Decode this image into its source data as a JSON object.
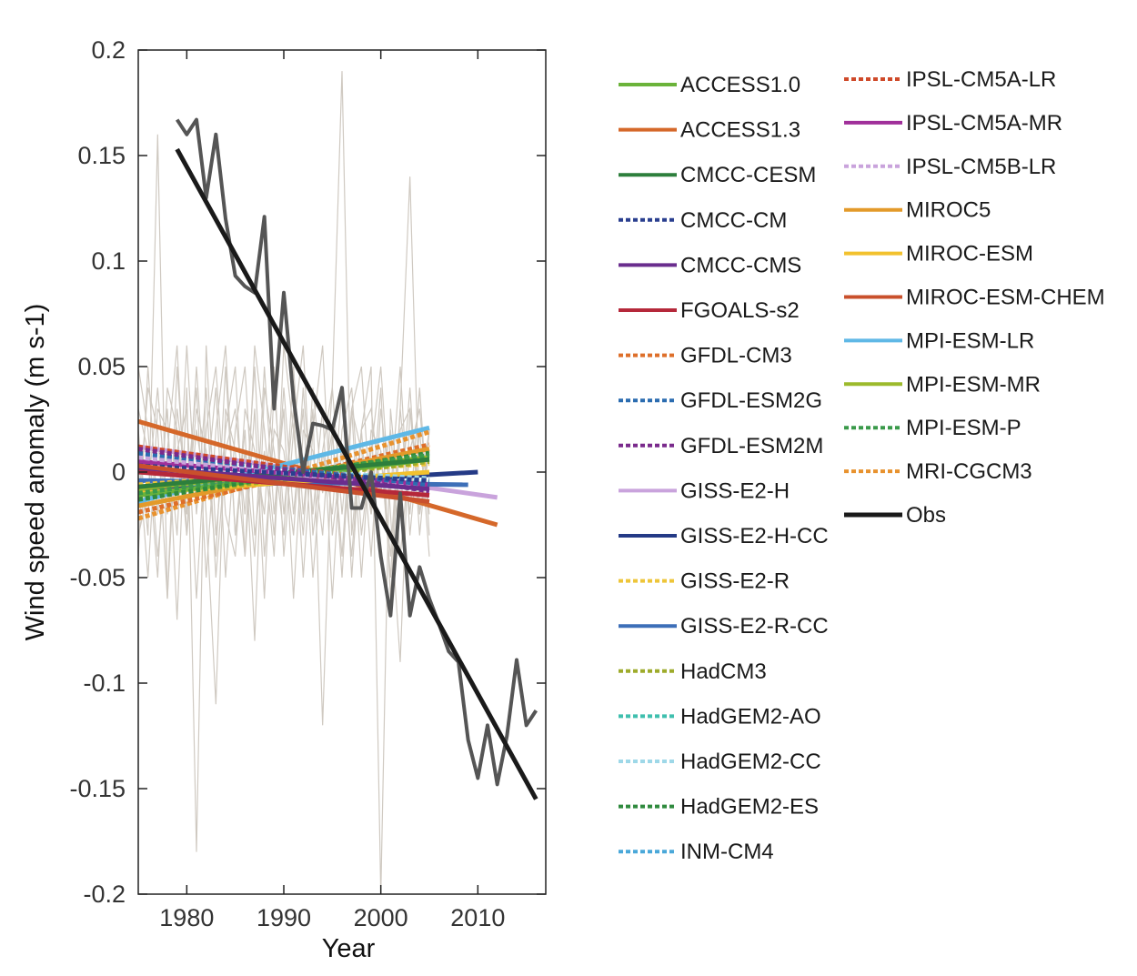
{
  "chart_data": {
    "type": "line",
    "xlabel": "Year",
    "ylabel": "Wind speed anomaly (m s-1)",
    "xlim": [
      1975,
      2017
    ],
    "ylim": [
      -0.2,
      0.2
    ],
    "xticks": [
      1980,
      1990,
      2000,
      2010
    ],
    "xtick_labels": [
      "1980",
      "1990",
      "2000",
      "2010"
    ],
    "yticks": [
      0.2,
      0.15,
      0.1,
      0.05,
      0,
      -0.05,
      -0.1,
      -0.15,
      -0.2
    ],
    "ytick_labels": [
      "0.2",
      "0.15",
      "0.1",
      "0.05",
      "0",
      "-0.05",
      "-0.1",
      "-0.15",
      "-0.2"
    ],
    "grid": false,
    "legend_position": "right",
    "background_series": {
      "description_color": "#cfc9c1",
      "x": [
        1975,
        1976,
        1977,
        1978,
        1979,
        1980,
        1981,
        1982,
        1983,
        1984,
        1985,
        1986,
        1987,
        1988,
        1989,
        1990,
        1991,
        1992,
        1993,
        1994,
        1995,
        1996,
        1997,
        1998,
        1999,
        2000,
        2001,
        2002,
        2003,
        2004,
        2005
      ],
      "runs": [
        [
          0.02,
          -0.03,
          0.16,
          -0.06,
          0.03,
          -0.01,
          0.04,
          -0.05,
          0.02,
          0.06,
          -0.03,
          0.01,
          -0.04,
          0.05,
          -0.02,
          0.03,
          -0.06,
          0.02,
          0.01,
          -0.03,
          0.04,
          -0.02,
          0.03,
          -0.05,
          0.02,
          0.01,
          -0.04,
          0.03,
          0.14,
          -0.02,
          0.01
        ],
        [
          -0.04,
          0.05,
          -0.02,
          0.03,
          -0.07,
          0.04,
          -0.18,
          0.06,
          -0.03,
          0.02,
          0.05,
          -0.04,
          0.03,
          -0.06,
          0.04,
          -0.02,
          0.03,
          -0.05,
          0.02,
          0.06,
          -0.03,
          0.01,
          -0.04,
          0.02,
          0.05,
          -0.2,
          0.03,
          -0.02,
          0.04,
          -0.03,
          0.02
        ],
        [
          0.03,
          0.01,
          -0.05,
          0.04,
          0.02,
          -0.03,
          0.05,
          -0.02,
          -0.11,
          0.03,
          0.01,
          -0.04,
          0.06,
          0.02,
          -0.03,
          0.04,
          -0.02,
          0.03,
          -0.05,
          0.01,
          0.04,
          0.19,
          -0.03,
          0.02,
          -0.04,
          0.03,
          -0.01,
          0.05,
          -0.03,
          0.02,
          -0.04
        ],
        [
          -0.02,
          0.04,
          0.02,
          -0.06,
          0.05,
          -0.02,
          0.03,
          0.01,
          -0.04,
          0.05,
          -0.03,
          0.02,
          -0.08,
          0.04,
          0.01,
          -0.03,
          0.05,
          -0.02,
          0.03,
          -0.12,
          0.02,
          -0.04,
          0.03,
          0.05,
          -0.02,
          0.01,
          -0.05,
          0.03,
          -0.02,
          0.04,
          -0.03
        ],
        [
          0.01,
          -0.05,
          0.03,
          0.02,
          -0.03,
          0.06,
          -0.02,
          0.04,
          -0.05,
          0.01,
          0.03,
          -0.02,
          0.05,
          -0.04,
          0.02,
          0.01,
          -0.03,
          0.04,
          -0.02,
          0.03,
          -0.06,
          0.02,
          0.04,
          -0.03,
          0.01,
          0.05,
          -0.02,
          -0.09,
          0.03,
          -0.01,
          0.02
        ],
        [
          0.05,
          0.02,
          -0.04,
          0.01,
          0.06,
          -0.03,
          0.02,
          -0.01,
          0.04,
          -0.05,
          0.02,
          0.05,
          -0.03,
          0.01,
          -0.04,
          0.06,
          0.02,
          -0.03,
          0.04,
          -0.01,
          0.02,
          -0.05,
          0.03,
          0.01,
          -0.02,
          0.04,
          -0.06,
          0.02,
          0.03,
          -0.02,
          0.01
        ],
        [
          -0.03,
          -0.01,
          0.04,
          -0.02,
          0.01,
          0.03,
          -0.06,
          0.02,
          0.05,
          -0.02,
          -0.04,
          0.03,
          0.01,
          -0.02,
          0.05,
          -0.04,
          0.02,
          0.06,
          -0.03,
          0.01,
          -0.02,
          0.04,
          -0.05,
          0.02,
          0.03,
          -0.01,
          0.02,
          -0.04,
          0.01,
          0.03,
          -0.02
        ]
      ]
    },
    "trend_lines": [
      {
        "name": "ACCESS1.3",
        "color": "#d5682a",
        "dash": false,
        "x": [
          1975,
          2012
        ],
        "y": [
          0.024,
          -0.025
        ]
      },
      {
        "name": "GISS-E2-H",
        "color": "#c9a3dc",
        "dash": false,
        "x": [
          1975,
          2012
        ],
        "y": [
          0.012,
          -0.012
        ]
      },
      {
        "name": "MPI-ESM-LR",
        "color": "#5fb8e6",
        "dash": false,
        "x": [
          1975,
          2005
        ],
        "y": [
          -0.014,
          0.021
        ]
      },
      {
        "name": "GISS-E2-H-CC",
        "color": "#243a86",
        "dash": false,
        "x": [
          1975,
          2010
        ],
        "y": [
          -0.009,
          0.0
        ]
      },
      {
        "name": "GISS-E2-R-CC",
        "color": "#3d6fb8",
        "dash": false,
        "x": [
          1975,
          2009
        ],
        "y": [
          -0.004,
          -0.006
        ]
      },
      {
        "name": "MRI-CGCM3",
        "color": "#e8922e",
        "dash": true,
        "x": [
          1975,
          2005
        ],
        "y": [
          -0.022,
          0.019
        ]
      },
      {
        "name": "GFDL-CM3",
        "color": "#de6f2a",
        "dash": true,
        "x": [
          1975,
          2005
        ],
        "y": [
          -0.019,
          0.013
        ]
      },
      {
        "name": "MIROC5",
        "color": "#e39a2a",
        "dash": false,
        "x": [
          1975,
          2005
        ],
        "y": [
          -0.016,
          0.011
        ]
      },
      {
        "name": "MIROC-ESM",
        "color": "#f2c12e",
        "dash": false,
        "x": [
          1975,
          2005
        ],
        "y": [
          -0.01,
          0.0
        ]
      },
      {
        "name": "GISS-E2-R",
        "color": "#eec539",
        "dash": true,
        "x": [
          1975,
          2005
        ],
        "y": [
          -0.006,
          0.004
        ]
      },
      {
        "name": "HadCM3",
        "color": "#9eab2b",
        "dash": true,
        "x": [
          1975,
          2005
        ],
        "y": [
          -0.012,
          0.005
        ]
      },
      {
        "name": "MPI-ESM-MR",
        "color": "#9cba2c",
        "dash": false,
        "x": [
          1975,
          2005
        ],
        "y": [
          -0.008,
          0.007
        ]
      },
      {
        "name": "ACCESS1.0",
        "color": "#6bb33a",
        "dash": false,
        "x": [
          1975,
          2005
        ],
        "y": [
          -0.011,
          0.006
        ]
      },
      {
        "name": "HadGEM2-ES",
        "color": "#2f8a3e",
        "dash": true,
        "x": [
          1975,
          2005
        ],
        "y": [
          -0.013,
          0.009
        ]
      },
      {
        "name": "MPI-ESM-P",
        "color": "#3a9a4a",
        "dash": true,
        "x": [
          1975,
          2005
        ],
        "y": [
          -0.01,
          0.008
        ]
      },
      {
        "name": "CMCC-CESM",
        "color": "#2d7f3c",
        "dash": false,
        "x": [
          1975,
          2005
        ],
        "y": [
          -0.007,
          0.006
        ]
      },
      {
        "name": "HadGEM2-AO",
        "color": "#3fbfae",
        "dash": true,
        "x": [
          1975,
          2005
        ],
        "y": [
          0.006,
          -0.004
        ]
      },
      {
        "name": "HadGEM2-CC",
        "color": "#9ed8e8",
        "dash": true,
        "x": [
          1975,
          2005
        ],
        "y": [
          0.004,
          -0.003
        ]
      },
      {
        "name": "INM-CM4",
        "color": "#4aa8d9",
        "dash": true,
        "x": [
          1975,
          2005
        ],
        "y": [
          0.008,
          -0.005
        ]
      },
      {
        "name": "IPSL-CM5A-LR",
        "color": "#cf4a2a",
        "dash": true,
        "x": [
          1975,
          2005
        ],
        "y": [
          0.012,
          -0.007
        ]
      },
      {
        "name": "IPSL-CM5A-MR",
        "color": "#a02f9a",
        "dash": false,
        "x": [
          1975,
          2005
        ],
        "y": [
          0.005,
          -0.006
        ]
      },
      {
        "name": "IPSL-CM5B-LR",
        "color": "#c9a3dc",
        "dash": true,
        "x": [
          1975,
          2005
        ],
        "y": [
          0.007,
          -0.008
        ]
      },
      {
        "name": "GFDL-ESM2G",
        "color": "#2b6cb0",
        "dash": true,
        "x": [
          1975,
          2005
        ],
        "y": [
          0.009,
          -0.006
        ]
      },
      {
        "name": "GFDL-ESM2M",
        "color": "#7a2a8c",
        "dash": true,
        "x": [
          1975,
          2005
        ],
        "y": [
          0.011,
          -0.009
        ]
      },
      {
        "name": "CMCC-CM",
        "color": "#2a3f8f",
        "dash": true,
        "x": [
          1975,
          2005
        ],
        "y": [
          0.003,
          -0.004
        ]
      },
      {
        "name": "CMCC-CMS",
        "color": "#6a2d8e",
        "dash": false,
        "x": [
          1975,
          2005
        ],
        "y": [
          0.002,
          -0.008
        ]
      },
      {
        "name": "FGOALS-s2",
        "color": "#b5283a",
        "dash": false,
        "x": [
          1975,
          2005
        ],
        "y": [
          0.0,
          -0.011
        ]
      },
      {
        "name": "MIROC-ESM-CHEM",
        "color": "#c9502c",
        "dash": false,
        "x": [
          1975,
          2005
        ],
        "y": [
          0.003,
          -0.014
        ]
      }
    ],
    "obs_annual": {
      "name": "Obs annual",
      "color": "#555555",
      "x": [
        1979,
        1980,
        1981,
        1982,
        1983,
        1984,
        1985,
        1986,
        1987,
        1988,
        1989,
        1990,
        1991,
        1992,
        1993,
        1994,
        1995,
        1996,
        1997,
        1998,
        1999,
        2000,
        2001,
        2002,
        2003,
        2004,
        2005,
        2006,
        2007,
        2008,
        2009,
        2010,
        2011,
        2012,
        2013,
        2014,
        2015,
        2016
      ],
      "y": [
        0.167,
        0.16,
        0.167,
        0.13,
        0.16,
        0.12,
        0.093,
        0.088,
        0.085,
        0.121,
        0.03,
        0.085,
        0.035,
        0.0,
        0.023,
        0.022,
        0.02,
        0.04,
        -0.017,
        -0.017,
        0.0,
        -0.04,
        -0.068,
        -0.01,
        -0.068,
        -0.045,
        -0.06,
        -0.072,
        -0.085,
        -0.09,
        -0.127,
        -0.145,
        -0.12,
        -0.148,
        -0.125,
        -0.089,
        -0.12,
        -0.113
      ]
    },
    "obs_trend": {
      "name": "Obs",
      "color": "#1a1a1a",
      "x": [
        1979,
        2016
      ],
      "y": [
        0.153,
        -0.155
      ]
    },
    "legend": {
      "col1": [
        {
          "label": "ACCESS1.0",
          "color": "#6bb33a",
          "dash": false
        },
        {
          "label": "ACCESS1.3",
          "color": "#d5682a",
          "dash": false
        },
        {
          "label": "CMCC-CESM",
          "color": "#2d7f3c",
          "dash": false
        },
        {
          "label": "CMCC-CM",
          "color": "#2a3f8f",
          "dash": true
        },
        {
          "label": "CMCC-CMS",
          "color": "#6a2d8e",
          "dash": false
        },
        {
          "label": "FGOALS-s2",
          "color": "#b5283a",
          "dash": false
        },
        {
          "label": "GFDL-CM3",
          "color": "#de6f2a",
          "dash": true
        },
        {
          "label": "GFDL-ESM2G",
          "color": "#2b6cb0",
          "dash": true
        },
        {
          "label": "GFDL-ESM2M",
          "color": "#7a2a8c",
          "dash": true
        },
        {
          "label": "GISS-E2-H",
          "color": "#c9a3dc",
          "dash": false
        },
        {
          "label": "GISS-E2-H-CC",
          "color": "#243a86",
          "dash": false
        },
        {
          "label": "GISS-E2-R",
          "color": "#eec539",
          "dash": true
        },
        {
          "label": "GISS-E2-R-CC",
          "color": "#3d6fb8",
          "dash": false
        },
        {
          "label": "HadCM3",
          "color": "#9eab2b",
          "dash": true
        },
        {
          "label": "HadGEM2-AO",
          "color": "#3fbfae",
          "dash": true
        },
        {
          "label": "HadGEM2-CC",
          "color": "#9ed8e8",
          "dash": true
        },
        {
          "label": "HadGEM2-ES",
          "color": "#2f8a3e",
          "dash": true
        },
        {
          "label": "INM-CM4",
          "color": "#4aa8d9",
          "dash": true
        }
      ],
      "col2": [
        {
          "label": "IPSL-CM5A-LR",
          "color": "#cf4a2a",
          "dash": true
        },
        {
          "label": "IPSL-CM5A-MR",
          "color": "#a02f9a",
          "dash": false
        },
        {
          "label": "IPSL-CM5B-LR",
          "color": "#c9a3dc",
          "dash": true
        },
        {
          "label": "MIROC5",
          "color": "#e39a2a",
          "dash": false
        },
        {
          "label": "MIROC-ESM",
          "color": "#f2c12e",
          "dash": false
        },
        {
          "label": "MIROC-ESM-CHEM",
          "color": "#c9502c",
          "dash": false
        },
        {
          "label": "MPI-ESM-LR",
          "color": "#5fb8e6",
          "dash": false
        },
        {
          "label": "MPI-ESM-MR",
          "color": "#9cba2c",
          "dash": false
        },
        {
          "label": "MPI-ESM-P",
          "color": "#3a9a4a",
          "dash": true
        },
        {
          "label": "MRI-CGCM3",
          "color": "#e8922e",
          "dash": true
        },
        {
          "label": "Obs",
          "color": "#1a1a1a",
          "dash": false
        }
      ]
    }
  }
}
